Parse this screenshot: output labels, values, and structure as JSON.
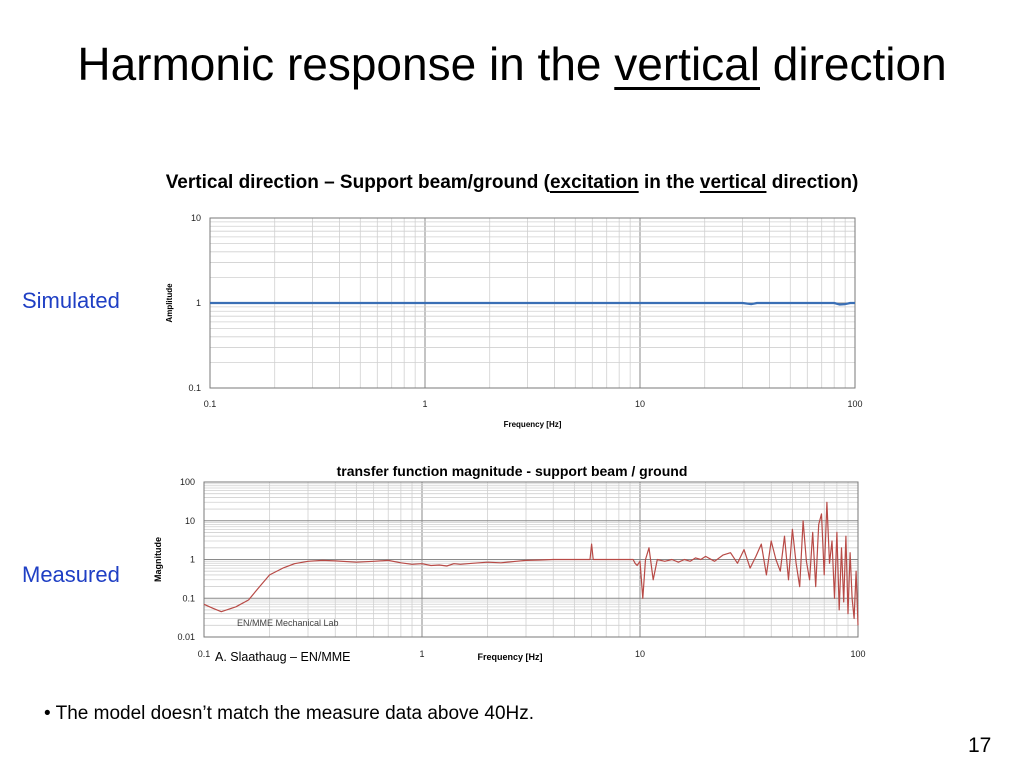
{
  "slide": {
    "title_part1": "Harmonic response in the ",
    "title_underlined": "vertical",
    "title_part2": " direction",
    "subtitle_part1": "Vertical direction – Support beam/ground (",
    "subtitle_u1": "excitation",
    "subtitle_part2": " in the ",
    "subtitle_u2": "vertical",
    "subtitle_part3": " direction)",
    "label_simulated": "Simulated",
    "label_measured": "Measured",
    "bullet": "•",
    "note": "The model doesn’t match the measure data above 40Hz.",
    "page_number": "17",
    "credit": "A. Slaathaug – EN/MME"
  },
  "chart_data": [
    {
      "type": "line",
      "name_on_page": "simulated",
      "title": "",
      "xlabel": "Frequency [Hz]",
      "ylabel": "Amplitude",
      "x_scale": "log",
      "y_scale": "log",
      "xlim": [
        0.1,
        100
      ],
      "ylim": [
        0.1,
        10
      ],
      "x_ticks": [
        "0.1",
        "1",
        "10",
        "100"
      ],
      "y_ticks": [
        "10",
        "1",
        "0.1"
      ],
      "grid": true,
      "line_color": "#3a6fb5",
      "series": [
        {
          "x": [
            0.1,
            1,
            10,
            30,
            33,
            35,
            40,
            80,
            85,
            90,
            95,
            100
          ],
          "y": [
            1.0,
            1.0,
            1.0,
            1.0,
            0.97,
            1.0,
            1.0,
            1.0,
            0.96,
            0.97,
            1.0,
            1.0
          ]
        }
      ]
    },
    {
      "type": "line",
      "name_on_page": "measured",
      "title": "transfer function magnitude - support beam  / ground",
      "xlabel": "Frequency [Hz]",
      "ylabel": "Magnitude",
      "x_scale": "log",
      "y_scale": "log",
      "xlim": [
        0.1,
        100
      ],
      "ylim": [
        0.01,
        100
      ],
      "x_ticks": [
        "0.1",
        "1",
        "10",
        "100"
      ],
      "y_ticks": [
        "100",
        "10",
        "1",
        "0.1",
        "0.01"
      ],
      "grid": true,
      "annotation": "EN/MME Mechanical Lab",
      "line_color": "#b84a46",
      "series": [
        {
          "x": [
            0.1,
            0.11,
            0.12,
            0.14,
            0.16,
            0.18,
            0.2,
            0.23,
            0.26,
            0.3,
            0.35,
            0.4,
            0.5,
            0.6,
            0.7,
            0.8,
            0.9,
            1.0,
            1.1,
            1.2,
            1.3,
            1.4,
            1.5,
            1.7,
            2.0,
            2.3,
            2.7,
            3.0,
            3.5,
            4.0,
            4.5,
            5.0,
            5.5,
            5.9,
            6.0,
            6.1,
            6.5,
            7.0,
            7.5,
            8.0,
            8.5,
            9.0,
            9.3,
            9.5,
            9.7,
            10.0,
            10.3,
            10.6,
            11.0,
            11.5,
            12.0,
            13.0,
            14.0,
            15.0,
            16.0,
            17.0,
            18.0,
            19.0,
            20.0,
            22.0,
            24.0,
            26.0,
            28.0,
            30.0,
            32.0,
            34.0,
            36.0,
            38.0,
            40.0,
            42.0,
            44.0,
            46.0,
            48.0,
            50.0,
            52.0,
            54.0,
            56.0,
            58.0,
            60.0,
            62.0,
            64.0,
            66.0,
            68.0,
            70.0,
            72.0,
            74.0,
            76.0,
            78.0,
            80.0,
            82.0,
            84.0,
            86.0,
            88.0,
            90.0,
            92.0,
            94.0,
            96.0,
            98.0,
            100.0
          ],
          "y": [
            0.07,
            0.055,
            0.045,
            0.06,
            0.09,
            0.2,
            0.4,
            0.6,
            0.78,
            0.9,
            0.95,
            0.92,
            0.85,
            0.9,
            0.95,
            0.82,
            0.75,
            0.78,
            0.7,
            0.72,
            0.68,
            0.78,
            0.75,
            0.8,
            0.85,
            0.82,
            0.9,
            0.95,
            0.97,
            1.0,
            1.0,
            1.0,
            1.0,
            1.0,
            2.5,
            1.0,
            1.0,
            1.0,
            1.0,
            1.0,
            1.0,
            1.0,
            1.0,
            0.8,
            0.7,
            0.9,
            0.1,
            1.0,
            2.0,
            0.3,
            1.0,
            0.9,
            1.0,
            0.85,
            1.0,
            0.9,
            1.1,
            1.0,
            1.2,
            0.9,
            1.3,
            1.5,
            0.8,
            1.8,
            0.6,
            1.2,
            2.5,
            0.4,
            3.0,
            1.0,
            0.5,
            4.0,
            0.3,
            6.0,
            0.8,
            0.2,
            10.0,
            0.9,
            0.3,
            5.0,
            0.2,
            8.0,
            15.0,
            0.4,
            30.0,
            0.8,
            3.0,
            0.1,
            5.0,
            0.05,
            2.0,
            0.08,
            4.0,
            0.04,
            1.5,
            0.1,
            0.03,
            0.5,
            0.02
          ]
        }
      ]
    }
  ]
}
